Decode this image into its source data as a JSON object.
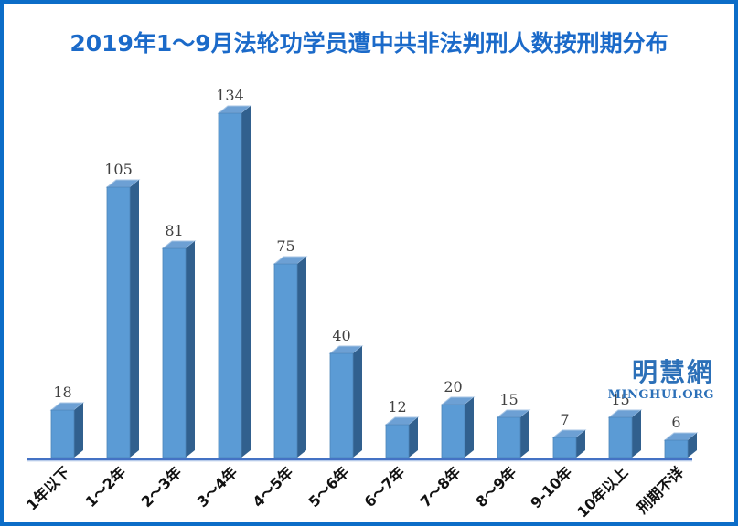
{
  "title": "2019年1～9月法轮功学员遭中共非法判刑人数按刑期分布",
  "watermark": {
    "cjk": "明慧網",
    "latin": "MINGHUI.ORG"
  },
  "colors": {
    "frame_border": "#0c6dc8",
    "title_text": "#1b6ac9",
    "bar_front": "#5b9bd5",
    "bar_top": "#6da0d4",
    "bar_top_edge": "#a8c6e5",
    "bar_side": "#31608e",
    "bar_outline": "#4d84b8",
    "axis_line": "#4472c4",
    "axis_line_light": "#9fb9e2",
    "value_label": "#404040",
    "axis_label": "#111111",
    "watermark": "#2c70b8",
    "background": "#ffffff"
  },
  "chart_data": {
    "type": "bar",
    "style": "3d-column",
    "title": "2019年1～9月法轮功学员遭中共非法判刑人数按刑期分布",
    "categories": [
      "1年以下",
      "1～2年",
      "2～3年",
      "3～4年",
      "4～5年",
      "5～6年",
      "6～7年",
      "7～8年",
      "8～9年",
      "9-10年",
      "10年以上",
      "刑期不详"
    ],
    "values": [
      18,
      105,
      81,
      134,
      75,
      40,
      12,
      20,
      15,
      7,
      15,
      6
    ],
    "xlabel": "",
    "ylabel": "",
    "ylim": [
      0,
      140
    ],
    "grid": "off",
    "legend": "none",
    "data_labels": "above-bars",
    "x_tick_rotation_deg": 45
  }
}
